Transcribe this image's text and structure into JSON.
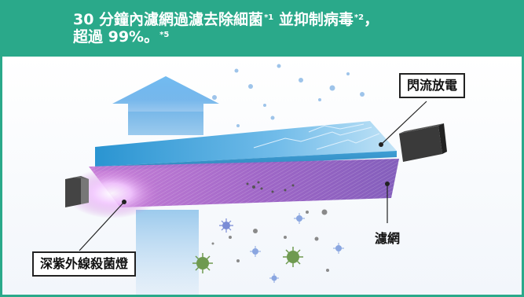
{
  "banner": {
    "line1_prefix": "30 分鐘內濾網過濾去除細菌",
    "note1": "*1",
    "line1_mid": " 並抑制病毒",
    "note2": "*2",
    "line1_suffix": "，",
    "line2_text": "超過 99%。",
    "note5": "*5",
    "background_color": "#2aa98a"
  },
  "labels": {
    "discharge": "閃流放電",
    "filter": "濾網",
    "uv_lamp": "深紫外線殺菌燈"
  },
  "icons": {
    "airflow": "airflow-up-arrow-icon",
    "virus": "virus-icon",
    "uv_lamp": "uv-lamp-icon",
    "discharge_unit": "discharge-unit-icon"
  }
}
